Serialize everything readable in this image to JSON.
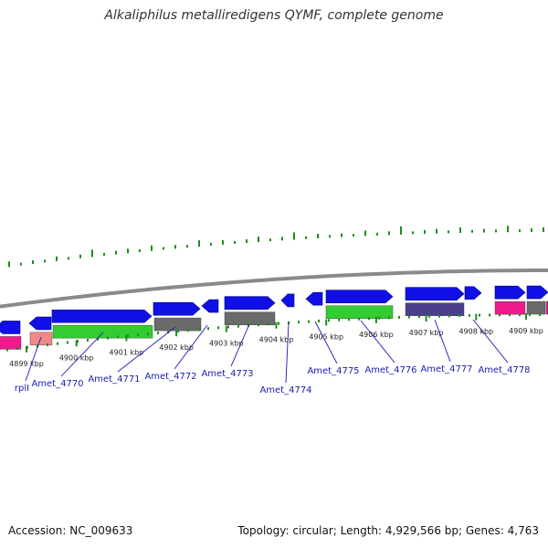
{
  "title": "Alkaliphilus metalliredigens QYMF, complete genome",
  "footer": {
    "accession": "Accession: NC_009633",
    "summary": "Topology: circular; Length: 4,929,566 bp; Genes: 4,763"
  },
  "colors": {
    "forward_gene": "#1010e6",
    "reverse_green": "#33cc33",
    "reverse_gray": "#6a6a6a",
    "reverse_purple": "#4a3f8c",
    "reverse_pink": "#ee1b8e",
    "reverse_light_pink": "#f08888",
    "gc_ticks": "#1e8c1e",
    "backbone": "#8a8a8a",
    "label_text": "#1a1ab4"
  },
  "ruler_ticks": [
    {
      "label": "4899 kbp"
    },
    {
      "label": "4900 kbp"
    },
    {
      "label": "4901 kbp"
    },
    {
      "label": "4902 kbp"
    },
    {
      "label": "4903 kbp"
    },
    {
      "label": "4904 kbp"
    },
    {
      "label": "4905 kbp"
    },
    {
      "label": "4906 kbp"
    },
    {
      "label": "4907 kbp"
    },
    {
      "label": "4908 kbp"
    },
    {
      "label": "4909 kbp"
    }
  ],
  "gene_labels": [
    {
      "name": "rplI"
    },
    {
      "name": "Amet_4770"
    },
    {
      "name": "Amet_4771"
    },
    {
      "name": "Amet_4772"
    },
    {
      "name": "Amet_4773"
    },
    {
      "name": "Amet_4774"
    },
    {
      "name": "Amet_4775"
    },
    {
      "name": "Amet_4776"
    },
    {
      "name": "Amet_4777"
    },
    {
      "name": "Amet_4778"
    }
  ]
}
